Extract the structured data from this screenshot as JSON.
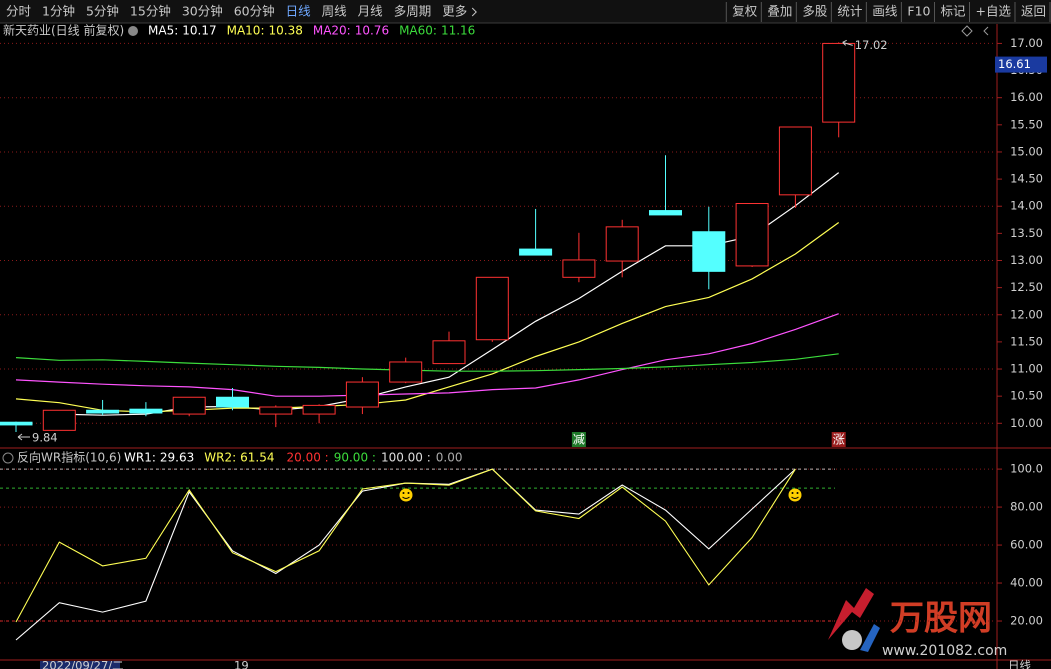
{
  "toolbar": {
    "periods": [
      "分时",
      "1分钟",
      "5分钟",
      "15分钟",
      "30分钟",
      "60分钟",
      "日线",
      "周线",
      "月线",
      "多周期",
      "更多"
    ],
    "active": "日线",
    "tools": [
      "复权",
      "叠加",
      "多股",
      "统计",
      "画线",
      "F10",
      "标记",
      "+自选",
      "返回"
    ]
  },
  "chart_data": [
    {
      "type": "candlestick",
      "title": "新天药业(日线 前复权)",
      "up_color": "#ff3232",
      "down_color": "#54ffff",
      "open": [
        10.02,
        9.87,
        10.24,
        10.26,
        10.17,
        10.48,
        10.17,
        10.17,
        10.3,
        10.76,
        11.1,
        11.54,
        13.21,
        12.69,
        12.99,
        13.92,
        13.53,
        12.9,
        14.21,
        15.55
      ],
      "high": [
        10.03,
        10.24,
        10.43,
        10.39,
        10.48,
        10.65,
        10.33,
        10.35,
        10.85,
        11.21,
        11.69,
        12.69,
        13.95,
        13.51,
        13.75,
        14.94,
        13.99,
        14.05,
        15.46,
        17.02
      ],
      "low": [
        9.84,
        9.87,
        10.15,
        10.13,
        10.13,
        10.24,
        9.93,
        10.0,
        10.17,
        10.74,
        11.1,
        11.5,
        13.1,
        12.6,
        12.69,
        13.84,
        12.47,
        12.88,
        13.97,
        15.27
      ],
      "close": [
        9.97,
        10.24,
        10.19,
        10.19,
        10.48,
        10.3,
        10.3,
        10.33,
        10.76,
        11.13,
        11.52,
        12.69,
        13.1,
        13.01,
        13.62,
        13.84,
        12.8,
        14.05,
        15.46,
        17.0
      ],
      "series": [
        {
          "name": "MA5:",
          "color": "#ffffff",
          "cursor_value": 10.17,
          "values": [
            null,
            10.17,
            10.15,
            10.17,
            10.3,
            10.31,
            10.24,
            10.31,
            10.46,
            10.67,
            10.85,
            11.36,
            11.88,
            12.3,
            12.8,
            13.27,
            13.27,
            13.45,
            14.01,
            14.62
          ]
        },
        {
          "name": "MA10:",
          "color": "#ffff54",
          "cursor_value": 10.38,
          "values": [
            10.45,
            10.38,
            10.24,
            10.21,
            10.24,
            10.28,
            10.28,
            10.31,
            10.35,
            10.43,
            10.67,
            10.91,
            11.23,
            11.5,
            11.84,
            12.15,
            12.32,
            12.66,
            13.12,
            13.7
          ]
        },
        {
          "name": "MA20:",
          "color": "#ff54ff",
          "cursor_value": 10.76,
          "values": [
            10.8,
            10.76,
            10.72,
            10.69,
            10.67,
            10.62,
            10.5,
            10.5,
            10.52,
            10.54,
            10.56,
            10.62,
            10.65,
            10.8,
            10.99,
            11.17,
            11.28,
            11.47,
            11.73,
            12.02
          ]
        },
        {
          "name": "MA60:",
          "color": "#3cdc3c",
          "cursor_value": 11.16,
          "values": [
            11.21,
            11.16,
            11.17,
            11.14,
            11.11,
            11.08,
            11.05,
            11.03,
            11.0,
            10.98,
            10.96,
            10.96,
            10.97,
            10.99,
            11.01,
            11.04,
            11.08,
            11.12,
            11.18,
            11.28
          ]
        }
      ],
      "signals": [
        null,
        null,
        null,
        null,
        null,
        null,
        null,
        null,
        null,
        null,
        null,
        null,
        null,
        {
          "text": "减",
          "color": "#1f7a2a"
        },
        null,
        null,
        null,
        null,
        null,
        {
          "text": "涨",
          "color": "#9a1c1c"
        }
      ],
      "price_tag": 16.61,
      "ylim": [
        9.6,
        17.1
      ],
      "yticks": [
        {
          "value": 10,
          "label": "10.00"
        },
        {
          "value": 10.5,
          "label": "10.50"
        },
        {
          "value": 11,
          "label": "11.00"
        },
        {
          "value": 11.5,
          "label": "11.50"
        },
        {
          "value": 12,
          "label": "12.00"
        },
        {
          "value": 12.5,
          "label": "12.50"
        },
        {
          "value": 13,
          "label": "13.00"
        },
        {
          "value": 13.5,
          "label": "13.50"
        },
        {
          "value": 14,
          "label": "14.00"
        },
        {
          "value": 14.5,
          "label": "14.50"
        },
        {
          "value": 15,
          "label": "15.00"
        },
        {
          "value": 15.5,
          "label": "15.50"
        },
        {
          "value": 16,
          "label": "16.00"
        },
        {
          "value": 16.5,
          "label": "16.50"
        },
        {
          "value": 17,
          "label": "17.00"
        }
      ],
      "grid": true
    },
    {
      "type": "line",
      "title": "反向WR指标(10,6)",
      "series": [
        {
          "name": "WR1:",
          "color": "#ffffff",
          "cursor_value": 29.63,
          "values": [
            10,
            29.63,
            24.7,
            30.5,
            88,
            57,
            45,
            60,
            88.4,
            92.6,
            92,
            100,
            78.4,
            76.3,
            91.6,
            78.4,
            58,
            79,
            100,
            null
          ]
        },
        {
          "name": "WR2:",
          "color": "#ffff54",
          "cursor_value": 61.54,
          "values": [
            19.5,
            61.54,
            49,
            53,
            89,
            56,
            46,
            57,
            89.5,
            92.6,
            91.5,
            100,
            78,
            74,
            90.5,
            72.6,
            39,
            64,
            100,
            null
          ]
        }
      ],
      "ref_lines": [
        {
          "value": 20,
          "label": "20.00 :",
          "color": "#ff3232"
        },
        {
          "value": 90,
          "label": "90.00 :",
          "color": "#3cdc3c"
        },
        {
          "value": 100,
          "label": "100.00 :",
          "color": "#dddddd"
        },
        {
          "value": 0,
          "label": "0.00",
          "color": "#aaaaaa"
        }
      ],
      "ylim": [
        0,
        109
      ],
      "yticks": [
        {
          "value": 20,
          "label": "20.00"
        },
        {
          "value": 40,
          "label": "40.00"
        },
        {
          "value": 60,
          "label": "60.00"
        },
        {
          "value": 80,
          "label": "80.00"
        },
        {
          "value": 100,
          "label": "100.0"
        }
      ],
      "grid": true
    }
  ],
  "footer": {
    "date": "2022/09/27/二",
    "tick": "19",
    "period": "日线"
  },
  "watermark": {
    "name": "万股网",
    "url": "www.201082.com"
  }
}
